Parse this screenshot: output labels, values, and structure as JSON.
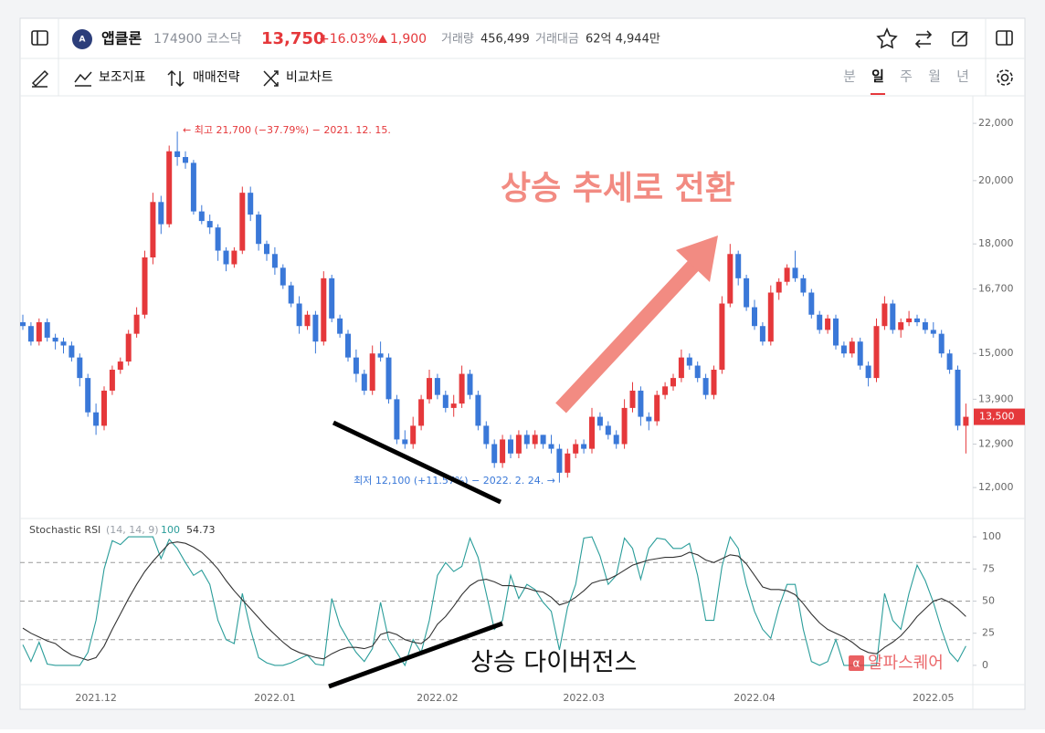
{
  "header": {
    "name": "앱클론",
    "code": "174900",
    "market": "코스닥",
    "price": "13,750",
    "change_pct": "+16.03%",
    "change": "1,900",
    "volume_label": "거래량",
    "volume": "456,499",
    "amount_label": "거래대금",
    "amount": "62억 4,944만"
  },
  "toolbar": {
    "items": [
      "보조지표",
      "매매전략",
      "비교차트"
    ],
    "periods": [
      "분",
      "일",
      "주",
      "월",
      "년"
    ],
    "selected_period": 1
  },
  "overlay": {
    "trend": "상승 추세로 전환",
    "divergence": "상승 다이버전스",
    "watermark": "알파스퀘어"
  },
  "chart_data": [
    {
      "type": "candlestick",
      "log": true,
      "up_color": "#e5383b",
      "down_color": "#3a78d8",
      "categories": [
        null,
        null,
        null,
        null,
        null,
        null,
        null,
        null,
        null,
        "2021.12",
        null,
        null,
        null,
        null,
        null,
        null,
        null,
        null,
        null,
        null,
        null,
        null,
        null,
        null,
        null,
        null,
        null,
        null,
        null,
        null,
        null,
        "2022.01",
        null,
        null,
        null,
        null,
        null,
        null,
        null,
        null,
        null,
        null,
        null,
        null,
        null,
        null,
        null,
        null,
        null,
        null,
        null,
        "2022.02",
        null,
        null,
        null,
        null,
        null,
        null,
        null,
        null,
        null,
        null,
        null,
        null,
        null,
        null,
        null,
        null,
        null,
        "2022.03",
        null,
        null,
        null,
        null,
        null,
        null,
        null,
        null,
        null,
        null,
        null,
        null,
        null,
        null,
        null,
        null,
        null,
        null,
        null,
        null,
        "2022.04",
        null,
        null,
        null,
        null,
        null,
        null,
        null,
        null,
        null,
        null,
        null,
        null,
        null,
        null,
        null,
        null,
        null,
        null,
        null,
        null,
        null,
        "2022.05",
        null,
        null,
        null,
        null
      ],
      "open": [
        15800,
        15700,
        15300,
        15800,
        15400,
        15300,
        15200,
        14900,
        14400,
        13600,
        13300,
        14100,
        14600,
        14800,
        15500,
        16000,
        17600,
        19300,
        18600,
        21000,
        20800,
        20600,
        19000,
        18700,
        18500,
        17800,
        17400,
        17800,
        19600,
        18900,
        18000,
        17700,
        17300,
        16800,
        16300,
        15700,
        16000,
        15300,
        17000,
        15900,
        15500,
        14900,
        14500,
        14100,
        15000,
        14900,
        13900,
        13000,
        12900,
        13300,
        13900,
        14400,
        14000,
        13700,
        13800,
        14500,
        14000,
        13300,
        12900,
        12500,
        13000,
        12700,
        13100,
        12900,
        13100,
        12900,
        12800,
        12300,
        12700,
        12900,
        12800,
        13500,
        13300,
        13100,
        12900,
        13700,
        14100,
        13500,
        13400,
        14000,
        14200,
        14400,
        14900,
        14700,
        14400,
        14000,
        14600,
        16300,
        17700,
        17000,
        16200,
        15700,
        15300,
        16600,
        16900,
        17300,
        17000,
        16600,
        16000,
        15600,
        15900,
        15200,
        15000,
        15300,
        14700,
        14400,
        15700,
        16300,
        15600,
        15800,
        15900,
        15800,
        15600,
        15500,
        15000,
        14600,
        13300
      ],
      "high": [
        16000,
        15800,
        15900,
        15900,
        15500,
        15400,
        15300,
        15000,
        14500,
        13800,
        14200,
        14700,
        14900,
        15600,
        16200,
        17800,
        19600,
        19500,
        21200,
        21700,
        21000,
        20700,
        19200,
        18900,
        18600,
        17900,
        17900,
        19800,
        19800,
        19000,
        18100,
        17900,
        17400,
        16900,
        16500,
        16100,
        16100,
        17200,
        17100,
        16000,
        15600,
        15100,
        14600,
        15200,
        15300,
        15000,
        14000,
        13200,
        13500,
        14000,
        14600,
        14500,
        14100,
        14000,
        14700,
        14600,
        14100,
        13400,
        13000,
        13100,
        13100,
        13200,
        13200,
        13200,
        13100,
        13100,
        12900,
        12800,
        13000,
        13000,
        13700,
        13600,
        13400,
        13200,
        13900,
        14300,
        14200,
        13600,
        14100,
        14300,
        14500,
        15100,
        15000,
        14800,
        14500,
        14700,
        16500,
        18000,
        17800,
        17100,
        16400,
        15800,
        16800,
        17000,
        17400,
        17800,
        17100,
        16700,
        16100,
        16000,
        16000,
        15300,
        15400,
        15400,
        14800,
        15900,
        16500,
        16400,
        15900,
        16100,
        16000,
        15900,
        15800,
        15600,
        15100,
        14700,
        13800
      ],
      "low": [
        15600,
        15200,
        15200,
        15300,
        15100,
        15000,
        14800,
        14200,
        13500,
        13100,
        13200,
        14000,
        14500,
        14700,
        15400,
        15900,
        17400,
        18300,
        18500,
        20500,
        20400,
        18900,
        18600,
        18300,
        17500,
        17200,
        17300,
        17700,
        18700,
        17800,
        17500,
        17100,
        16700,
        16200,
        15500,
        15600,
        15000,
        15200,
        15800,
        15400,
        14800,
        14300,
        14000,
        14000,
        14800,
        13800,
        12900,
        12800,
        12800,
        13200,
        13800,
        13900,
        13600,
        13500,
        13700,
        13900,
        13200,
        12800,
        12400,
        12400,
        12600,
        12600,
        12800,
        12800,
        12800,
        12700,
        12100,
        12200,
        12600,
        12700,
        12700,
        13200,
        13000,
        12800,
        12800,
        13600,
        13300,
        13200,
        13300,
        13900,
        14100,
        14300,
        14600,
        14300,
        13900,
        13900,
        14500,
        16200,
        16800,
        16100,
        15600,
        15200,
        15200,
        16400,
        16800,
        16900,
        16500,
        15900,
        15500,
        15500,
        15100,
        14900,
        14900,
        14600,
        14200,
        14300,
        15600,
        15500,
        15400,
        15700,
        15700,
        15500,
        15400,
        14900,
        14500,
        13200,
        12700
      ],
      "close": [
        15700,
        15300,
        15800,
        15400,
        15300,
        15200,
        14900,
        14400,
        13600,
        13300,
        14100,
        14600,
        14800,
        15500,
        16000,
        17600,
        19300,
        18600,
        21000,
        20800,
        20600,
        19000,
        18700,
        18500,
        17800,
        17400,
        17800,
        19600,
        18900,
        18000,
        17700,
        17300,
        16800,
        16300,
        15700,
        16000,
        15300,
        17000,
        15900,
        15500,
        14900,
        14500,
        14100,
        15000,
        14900,
        13900,
        13000,
        12900,
        13300,
        13900,
        14400,
        14000,
        13700,
        13800,
        14500,
        14000,
        13300,
        12900,
        12500,
        13000,
        12700,
        13100,
        12900,
        13100,
        12900,
        12800,
        12300,
        12700,
        12900,
        12800,
        13500,
        13300,
        13100,
        12900,
        13700,
        14100,
        13500,
        13400,
        14000,
        14200,
        14400,
        14900,
        14700,
        14400,
        14000,
        14600,
        16300,
        17700,
        17000,
        16200,
        15700,
        15300,
        16600,
        16900,
        17300,
        17000,
        16600,
        16000,
        15600,
        15900,
        15200,
        15000,
        15300,
        14700,
        14400,
        15700,
        16300,
        15600,
        15800,
        15900,
        15800,
        15600,
        15500,
        15000,
        14600,
        13300,
        13500
      ],
      "ylim": [
        11450,
        22960
      ],
      "yticks": [
        {
          "value": 12000,
          "label": "12,000"
        },
        {
          "value": 12900,
          "label": "12,900"
        },
        {
          "value": 13900,
          "label": "13,900"
        },
        {
          "value": 15000,
          "label": "15,000"
        },
        {
          "value": 16700,
          "label": "16,700"
        },
        {
          "value": 18000,
          "label": "18,000"
        },
        {
          "value": 20000,
          "label": "20,000"
        },
        {
          "value": 22000,
          "label": "22,000"
        }
      ],
      "last_price": {
        "value": 13500,
        "label": "13,500"
      },
      "high_note": "← 최고 21,700 (−37.79%) − 2021. 12. 15.",
      "low_note": "최저 12,100 (+11.57%) − 2022. 2. 24. →"
    },
    {
      "type": "line",
      "title": "Stochastic RSI",
      "params": "(14, 14, 9)",
      "ylim": [
        -15,
        115
      ],
      "yticks": [
        0,
        25,
        50,
        75,
        100
      ],
      "reference_lines": [
        20,
        50,
        80
      ],
      "series": [
        {
          "color": "#2a9d9a",
          "legend_value": 100,
          "values": [
            16,
            3,
            18,
            1,
            0,
            0,
            0,
            0,
            10,
            35,
            75,
            97,
            94,
            100,
            100,
            100,
            100,
            83,
            98,
            91,
            80,
            70,
            74,
            63,
            35,
            20,
            17,
            56,
            28,
            6,
            2,
            0,
            0,
            2,
            5,
            8,
            1,
            0,
            52,
            31,
            20,
            10,
            3,
            13,
            49,
            20,
            10,
            0,
            20,
            10,
            35,
            70,
            80,
            73,
            77,
            99,
            84,
            56,
            28,
            35,
            70,
            52,
            63,
            59,
            49,
            42,
            12,
            45,
            63,
            99,
            100,
            85,
            63,
            70,
            99,
            91,
            67,
            91,
            99,
            98,
            91,
            91,
            95,
            70,
            35,
            35,
            77,
            100,
            91,
            63,
            42,
            28,
            21,
            45,
            63,
            63,
            28,
            3,
            0,
            3,
            20,
            0,
            0,
            0,
            0,
            0,
            56,
            35,
            28,
            56,
            78,
            66,
            49,
            28,
            10,
            3,
            15
          ]
        },
        {
          "color": "#333333",
          "legend_value": 54.73,
          "values": [
            29,
            25,
            22,
            19,
            17,
            12,
            8,
            6,
            4,
            6,
            15,
            28,
            40,
            52,
            63,
            73,
            81,
            88,
            95,
            96,
            95,
            92,
            88,
            82,
            75,
            66,
            58,
            51,
            44,
            37,
            30,
            24,
            18,
            13,
            10,
            8,
            6,
            5,
            9,
            12,
            14,
            14,
            13,
            15,
            24,
            26,
            24,
            20,
            18,
            17,
            22,
            32,
            38,
            46,
            55,
            62,
            66,
            67,
            65,
            62,
            62,
            61,
            60,
            58,
            57,
            53,
            47,
            49,
            53,
            58,
            64,
            66,
            67,
            70,
            74,
            78,
            80,
            82,
            83,
            84,
            84,
            85,
            88,
            86,
            82,
            80,
            83,
            86,
            85,
            79,
            70,
            61,
            59,
            59,
            58,
            55,
            48,
            40,
            33,
            28,
            25,
            22,
            18,
            13,
            10,
            9,
            14,
            18,
            23,
            30,
            38,
            44,
            50,
            52,
            49,
            44,
            38
          ]
        }
      ]
    }
  ]
}
